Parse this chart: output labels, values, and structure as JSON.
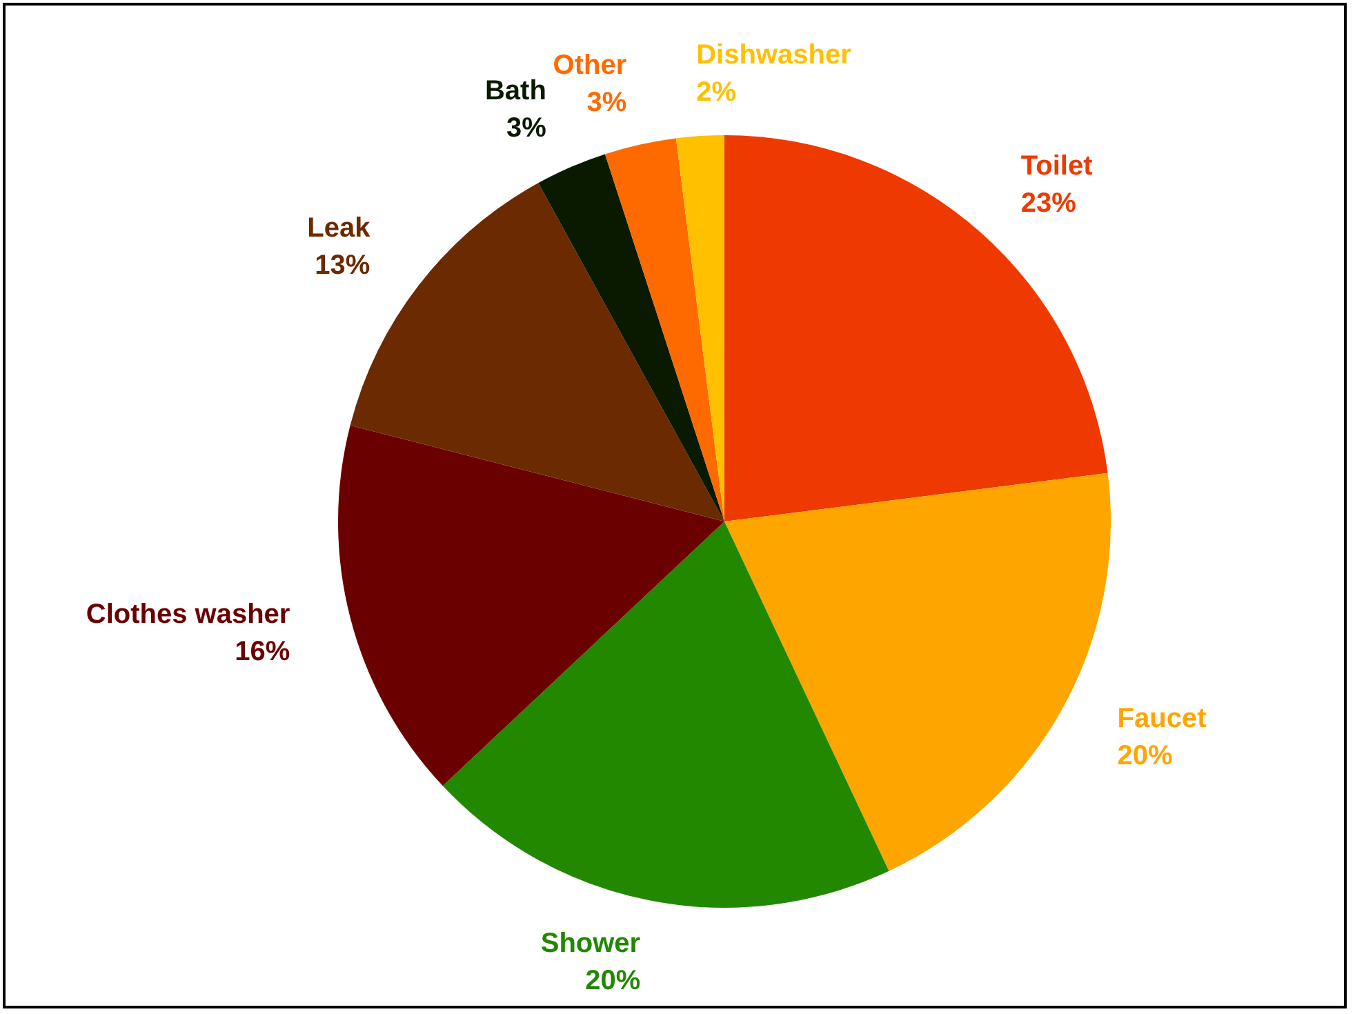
{
  "chart_data": {
    "type": "pie",
    "categories": [
      "Toilet",
      "Faucet",
      "Shower",
      "Clothes washer",
      "Leak",
      "Bath",
      "Other",
      "Dishwasher"
    ],
    "values": [
      23,
      20,
      20,
      16,
      13,
      3,
      3,
      2
    ],
    "value_labels": [
      "23%",
      "20%",
      "20%",
      "16%",
      "13%",
      "3%",
      "3%",
      "2%"
    ],
    "colors": [
      "#ee3a00",
      "#ffa500",
      "#228800",
      "#6b0000",
      "#6b2a00",
      "#0a1a00",
      "#ff6a00",
      "#ffc000"
    ],
    "legend": false
  }
}
